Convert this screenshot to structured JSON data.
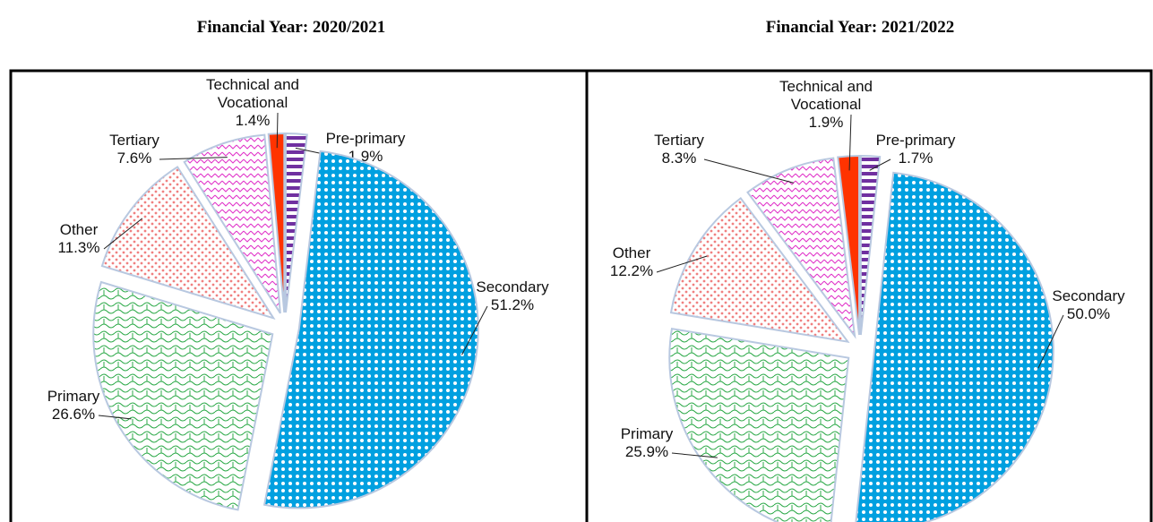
{
  "chart_data": [
    {
      "type": "pie",
      "title": "Financial Year: 2020/2021",
      "categories": [
        "Pre-primary",
        "Secondary",
        "Primary",
        "Other",
        "Tertiary",
        "Technical and Vocational"
      ],
      "values": [
        1.9,
        51.2,
        26.6,
        11.3,
        7.6,
        1.4
      ],
      "value_labels": [
        "1.9%",
        "51.2%",
        "26.6%",
        "11.3%",
        "7.6%",
        "1.4%"
      ],
      "colors": [
        "#7030a0",
        "#00a0e0",
        "#2eaa4a",
        "#f08080",
        "#e030c8",
        "#ff3300"
      ]
    },
    {
      "type": "pie",
      "title": "Financial Year: 2021/2022",
      "categories": [
        "Pre-primary",
        "Secondary",
        "Primary",
        "Other",
        "Tertiary",
        "Technical and Vocational"
      ],
      "values": [
        1.7,
        50.0,
        25.9,
        12.2,
        8.3,
        1.9
      ],
      "value_labels": [
        "1.7%",
        "50.0%",
        "25.9%",
        "12.2%",
        "8.3%",
        "1.9%"
      ],
      "colors": [
        "#7030a0",
        "#00a0e0",
        "#2eaa4a",
        "#f08080",
        "#e030c8",
        "#ff3300"
      ]
    }
  ]
}
